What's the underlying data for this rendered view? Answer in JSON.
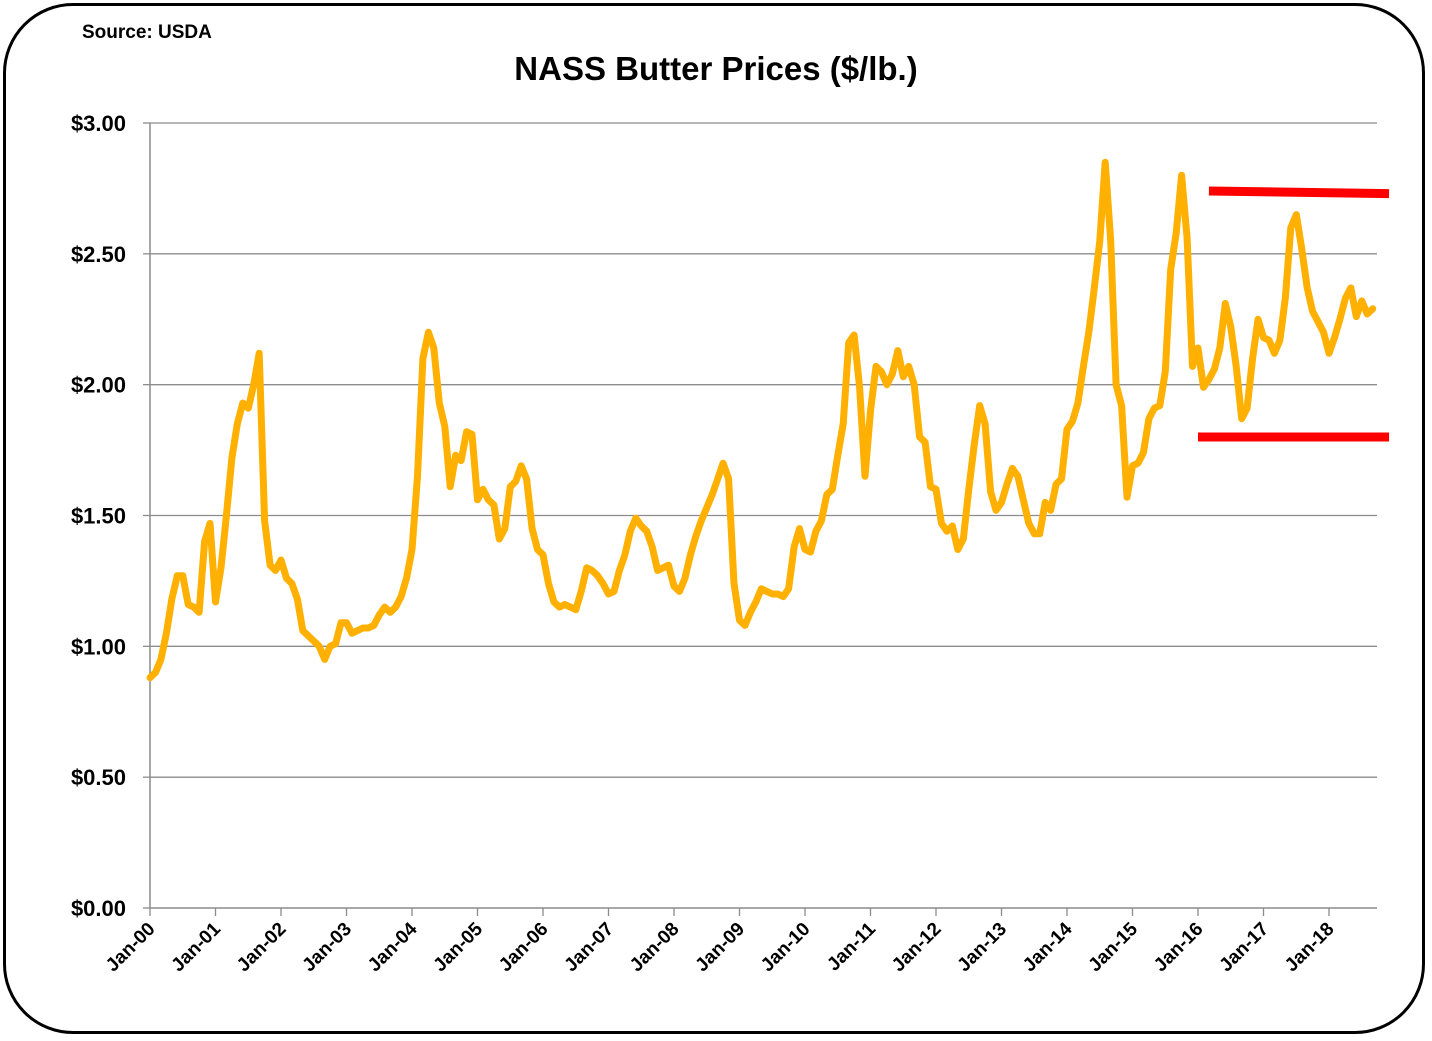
{
  "source": "Source: USDA",
  "chart_data": {
    "type": "line",
    "title": "NASS Butter Prices ($/lb.)",
    "xlabel": "",
    "ylabel": "",
    "ylim": [
      0,
      3
    ],
    "y_ticks": [
      "$0.00",
      "$0.50",
      "$1.00",
      "$1.50",
      "$2.00",
      "$2.50",
      "$3.00"
    ],
    "x_tick_labels": [
      "Jan-00",
      "Jan-01",
      "Jan-02",
      "Jan-03",
      "Jan-04",
      "Jan-05",
      "Jan-06",
      "Jan-07",
      "Jan-08",
      "Jan-09",
      "Jan-10",
      "Jan-11",
      "Jan-12",
      "Jan-13",
      "Jan-14",
      "Jan-15",
      "Jan-16",
      "Jan-17",
      "Jan-18"
    ],
    "grid": true,
    "series": [
      {
        "name": "NASS Butter Price",
        "color": "#FFB000",
        "values": [
          0.88,
          0.9,
          0.95,
          1.05,
          1.18,
          1.27,
          1.27,
          1.16,
          1.15,
          1.13,
          1.4,
          1.47,
          1.17,
          1.3,
          1.5,
          1.72,
          1.85,
          1.93,
          1.91,
          2.0,
          2.12,
          1.48,
          1.31,
          1.29,
          1.33,
          1.26,
          1.24,
          1.18,
          1.06,
          1.04,
          1.02,
          1.0,
          0.95,
          1.0,
          1.01,
          1.09,
          1.09,
          1.05,
          1.06,
          1.07,
          1.07,
          1.08,
          1.12,
          1.15,
          1.13,
          1.15,
          1.19,
          1.26,
          1.37,
          1.65,
          2.1,
          2.2,
          2.14,
          1.93,
          1.84,
          1.61,
          1.73,
          1.71,
          1.82,
          1.81,
          1.56,
          1.6,
          1.56,
          1.54,
          1.41,
          1.45,
          1.61,
          1.63,
          1.69,
          1.64,
          1.45,
          1.37,
          1.35,
          1.24,
          1.17,
          1.15,
          1.16,
          1.15,
          1.14,
          1.21,
          1.3,
          1.29,
          1.27,
          1.24,
          1.2,
          1.21,
          1.29,
          1.35,
          1.44,
          1.49,
          1.46,
          1.44,
          1.38,
          1.29,
          1.3,
          1.31,
          1.23,
          1.21,
          1.26,
          1.35,
          1.42,
          1.48,
          1.53,
          1.58,
          1.64,
          1.7,
          1.64,
          1.24,
          1.1,
          1.08,
          1.13,
          1.17,
          1.22,
          1.21,
          1.2,
          1.2,
          1.19,
          1.22,
          1.38,
          1.45,
          1.37,
          1.36,
          1.44,
          1.48,
          1.58,
          1.6,
          1.73,
          1.85,
          2.16,
          2.19,
          1.99,
          1.65,
          1.9,
          2.07,
          2.05,
          2.0,
          2.04,
          2.13,
          2.03,
          2.07,
          2.0,
          1.8,
          1.78,
          1.61,
          1.6,
          1.47,
          1.44,
          1.46,
          1.37,
          1.41,
          1.6,
          1.77,
          1.92,
          1.85,
          1.59,
          1.52,
          1.55,
          1.62,
          1.68,
          1.65,
          1.56,
          1.47,
          1.43,
          1.43,
          1.55,
          1.52,
          1.62,
          1.64,
          1.83,
          1.86,
          1.93,
          2.07,
          2.2,
          2.37,
          2.55,
          2.85,
          2.55,
          2.0,
          1.92,
          1.57,
          1.69,
          1.7,
          1.74,
          1.87,
          1.91,
          1.92,
          2.05,
          2.44,
          2.58,
          2.8,
          2.56,
          2.07,
          2.14,
          1.99,
          2.02,
          2.06,
          2.14,
          2.31,
          2.22,
          2.07,
          1.87,
          1.91,
          2.1,
          2.25,
          2.18,
          2.17,
          2.12,
          2.17,
          2.33,
          2.6,
          2.65,
          2.52,
          2.37,
          2.28,
          2.24,
          2.2,
          2.12,
          2.18,
          2.25,
          2.33,
          2.37,
          2.26,
          2.32,
          2.27,
          2.29
        ]
      }
    ],
    "annotations": [
      {
        "type": "red-line",
        "label": "upper range line",
        "points": [
          [
            "2016-03",
            2.74
          ],
          [
            "2018-12",
            2.73
          ]
        ]
      },
      {
        "type": "red-line",
        "label": "lower range line",
        "points": [
          [
            "2016-01",
            1.8
          ],
          [
            "2018-12",
            1.8
          ]
        ]
      }
    ]
  }
}
